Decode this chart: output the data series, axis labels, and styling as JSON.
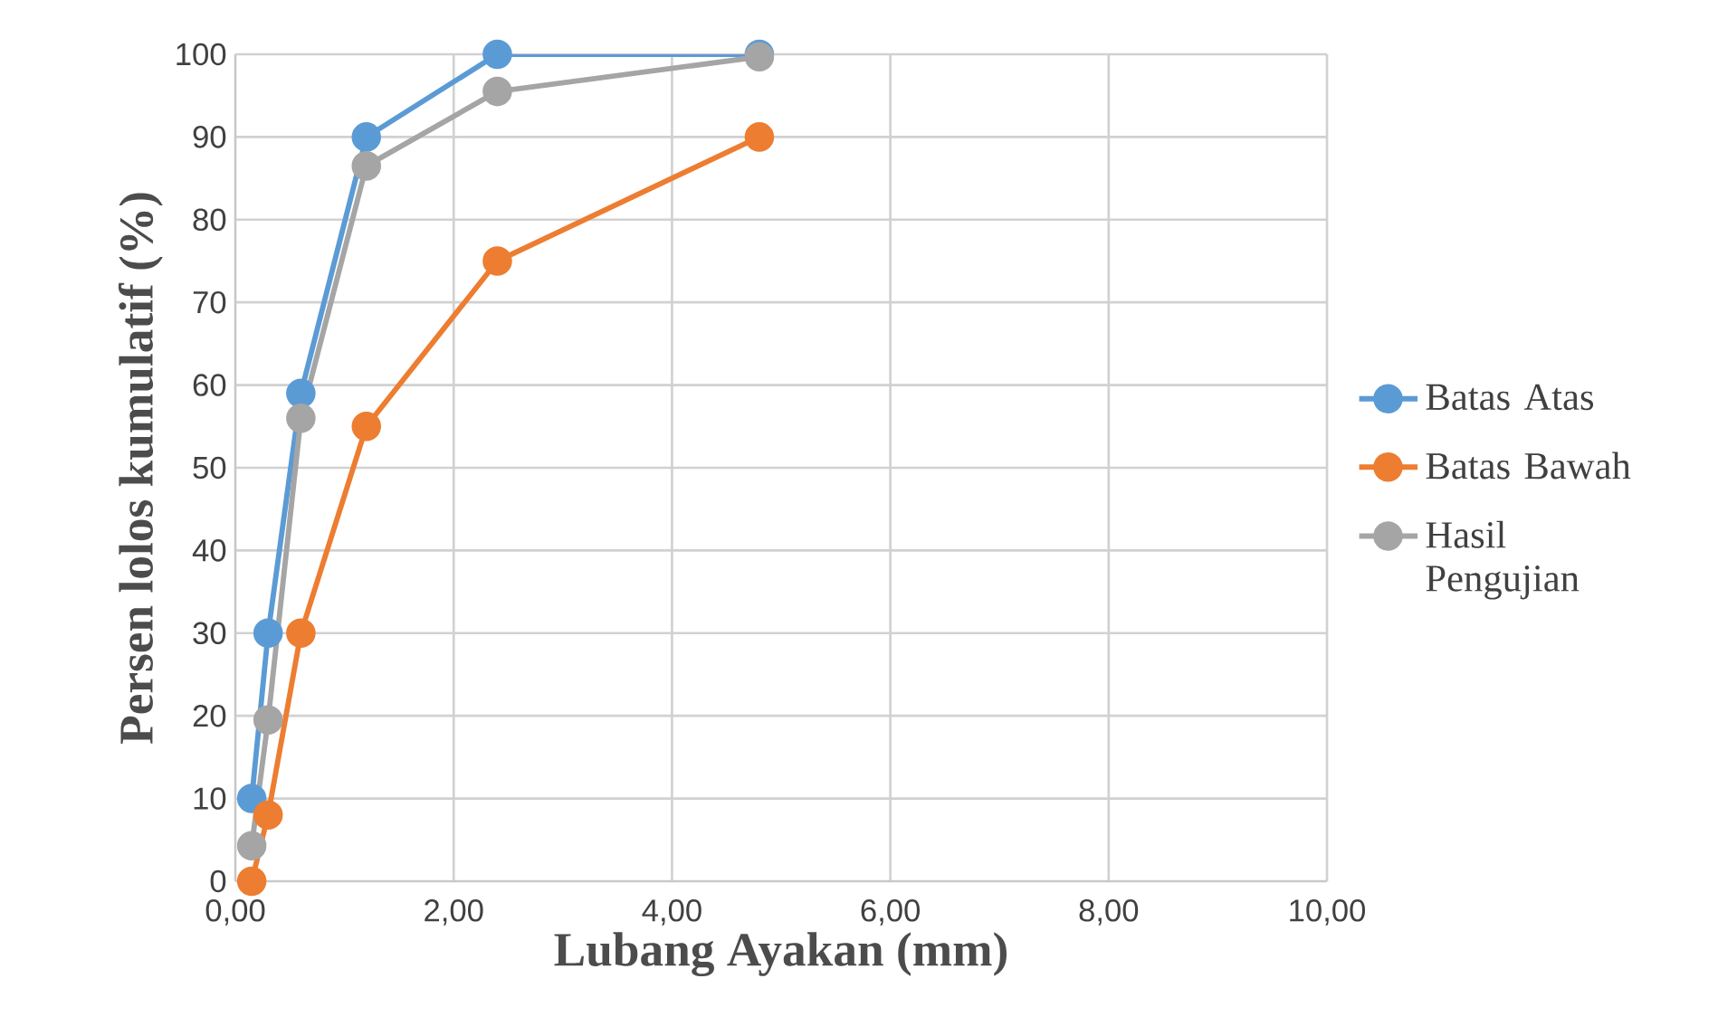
{
  "chart_data": {
    "type": "line",
    "xlabel": "Lubang Ayakan (mm)",
    "ylabel": "Persen lolos kumulatif (%)",
    "x": [
      0.15,
      0.3,
      0.6,
      1.2,
      2.4,
      4.8
    ],
    "series": [
      {
        "name": "Batas Atas",
        "color": "#5b9bd5",
        "values": [
          10,
          30,
          59,
          90,
          100,
          100
        ]
      },
      {
        "name": "Batas Bawah",
        "color": "#ed7d31",
        "values": [
          0,
          8,
          30,
          55,
          75,
          90
        ]
      },
      {
        "name": "Hasil Pengujian",
        "color": "#a5a5a5",
        "values": [
          4.3,
          19.5,
          56,
          86.5,
          95.5,
          99.7
        ]
      }
    ],
    "xlim": [
      0,
      10
    ],
    "xticks": [
      {
        "value": 0,
        "label": "0,00"
      },
      {
        "value": 2,
        "label": "2,00"
      },
      {
        "value": 4,
        "label": "4,00"
      },
      {
        "value": 6,
        "label": "6,00"
      },
      {
        "value": 8,
        "label": "8,00"
      },
      {
        "value": 10,
        "label": "10,00"
      }
    ],
    "ylim": [
      0,
      100
    ],
    "yticks": [
      0,
      10,
      20,
      30,
      40,
      50,
      60,
      70,
      80,
      90,
      100
    ],
    "grid": true,
    "legend": "right",
    "marker": "circle",
    "line_style": "solid"
  }
}
